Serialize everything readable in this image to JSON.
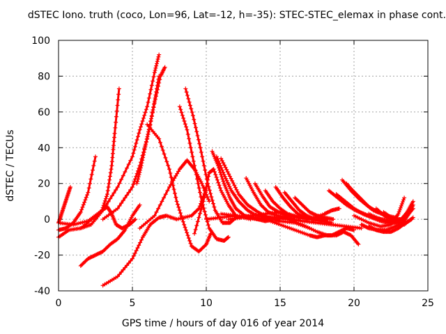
{
  "chart_data": {
    "type": "line",
    "title": "dSTEC Iono. truth (coco, Lon=96, Lat=-12, h=-35): STEC-STEC_elemax in phase cont.",
    "xlabel": "GPS time / hours of day 016 of year 2014",
    "ylabel": "dSTEC  / TECUs",
    "xlim": [
      0,
      25
    ],
    "ylim": [
      -40,
      100
    ],
    "x_ticks": [
      "0",
      "5",
      "10",
      "15",
      "20",
      "25"
    ],
    "y_ticks": [
      "-40",
      "-20",
      "0",
      "20",
      "40",
      "60",
      "80",
      "100"
    ],
    "grid": true,
    "marker": "+",
    "color": "#ff0000",
    "series": [
      {
        "x": [
          0,
          0.2,
          0.4,
          0.6,
          0.8
        ],
        "y": [
          -2,
          3,
          8,
          13,
          18
        ]
      },
      {
        "x": [
          0,
          0.5,
          1,
          1.5,
          2,
          2.5
        ],
        "y": [
          -6,
          -5,
          -2,
          4,
          15,
          35
        ]
      },
      {
        "x": [
          0,
          0.7,
          1.5,
          2.2,
          2.9,
          3.3,
          3.6,
          3.8,
          4.1
        ],
        "y": [
          -10,
          -6,
          -5,
          -3,
          4,
          14,
          30,
          48,
          73
        ]
      },
      {
        "x": [
          1.5,
          2,
          2.5,
          3,
          3.5,
          4,
          4.5,
          5,
          5.5
        ],
        "y": [
          -26,
          -22,
          -20,
          -18,
          -14,
          -11,
          -6,
          2,
          8
        ]
      },
      {
        "x": [
          0,
          1,
          2,
          2.8,
          3.3,
          3.6,
          3.9,
          4.3,
          4.8,
          5.2
        ],
        "y": [
          -2,
          -3,
          -1,
          4,
          7,
          3,
          -3,
          -5,
          -3,
          0
        ]
      },
      {
        "x": [
          3,
          4,
          5,
          5.7,
          6.2,
          6.8,
          7.3,
          8,
          9,
          9.5,
          10
        ],
        "y": [
          -37,
          -32,
          -22,
          -10,
          -3,
          1,
          2,
          0,
          2,
          6,
          17
        ]
      },
      {
        "x": [
          3,
          4,
          5,
          5.5,
          6,
          6.5,
          6.9,
          7.2
        ],
        "y": [
          0,
          6,
          18,
          30,
          45,
          65,
          80,
          85
        ]
      },
      {
        "x": [
          1.5,
          3,
          4,
          5,
          5.5,
          6,
          6.5,
          6.8
        ],
        "y": [
          -5,
          5,
          18,
          35,
          50,
          63,
          82,
          92
        ]
      },
      {
        "x": [
          5.3,
          5.6,
          5.9,
          6.2,
          6.5,
          6.8
        ],
        "y": [
          20,
          30,
          42,
          53,
          66,
          80
        ]
      },
      {
        "x": [
          6,
          6.8,
          7.5,
          8,
          8.5,
          9,
          9.5,
          10,
          10.3
        ],
        "y": [
          53,
          45,
          28,
          10,
          -3,
          -15,
          -18,
          -14,
          -8
        ]
      },
      {
        "x": [
          5.5,
          6.5,
          7.5,
          8.2,
          8.7,
          9.2,
          9.7,
          10.2
        ],
        "y": [
          -5,
          2,
          18,
          28,
          33,
          28,
          20,
          10
        ]
      },
      {
        "x": [
          8.2,
          8.7,
          9.2,
          9.7,
          10.2,
          10.7,
          11.2,
          11.5
        ],
        "y": [
          63,
          50,
          30,
          10,
          -5,
          -11,
          -12,
          -10
        ]
      },
      {
        "x": [
          8.6,
          9.1,
          9.6,
          10.1,
          10.6,
          11.1,
          11.6,
          12
        ],
        "y": [
          73,
          58,
          40,
          20,
          5,
          -2,
          -2,
          1
        ]
      },
      {
        "x": [
          9.2,
          9.8,
          10.2,
          10.5,
          11,
          11.5,
          12,
          13
        ],
        "y": [
          -8,
          10,
          26,
          28,
          16,
          8,
          2,
          0
        ]
      },
      {
        "x": [
          10.4,
          10.8,
          11.2,
          11.6,
          12,
          12.6,
          13.2
        ],
        "y": [
          38,
          30,
          20,
          12,
          6,
          2,
          1
        ]
      },
      {
        "x": [
          10.7,
          11.2,
          11.7,
          12.2,
          12.8,
          13.4,
          14
        ],
        "y": [
          35,
          25,
          16,
          10,
          5,
          2,
          1
        ]
      },
      {
        "x": [
          11,
          11.6,
          12.2,
          12.8,
          13.5,
          14.2,
          15
        ],
        "y": [
          34,
          24,
          14,
          8,
          4,
          1,
          0
        ]
      },
      {
        "x": [
          12.7,
          13.2,
          13.7,
          14.2,
          14.8,
          15.4,
          16
        ],
        "y": [
          23,
          15,
          8,
          4,
          2,
          1,
          0
        ]
      },
      {
        "x": [
          13.3,
          13.8,
          14.3,
          14.9,
          15.5,
          16.2,
          17
        ],
        "y": [
          20,
          13,
          7,
          4,
          2,
          1,
          0
        ]
      },
      {
        "x": [
          14,
          14.5,
          15,
          15.5,
          16.2,
          17,
          17.8,
          18.5
        ],
        "y": [
          16,
          10,
          6,
          3,
          1,
          0,
          -1,
          -2
        ]
      },
      {
        "x": [
          14.7,
          15.2,
          15.7,
          16.2,
          16.8,
          17.5,
          18.2
        ],
        "y": [
          18,
          12,
          7,
          3,
          1,
          0,
          0
        ]
      },
      {
        "x": [
          15.3,
          15.8,
          16.3,
          16.8,
          17.4,
          18
        ],
        "y": [
          15,
          10,
          5,
          2,
          0,
          0
        ]
      },
      {
        "x": [
          16,
          16.5,
          17,
          17.5,
          18,
          18.6
        ],
        "y": [
          12,
          8,
          4,
          2,
          1,
          0
        ]
      },
      {
        "x": [
          10,
          11,
          12,
          13,
          13.5,
          14,
          14.5,
          15,
          16,
          17
        ],
        "y": [
          0,
          1,
          2,
          1,
          0,
          -1,
          0,
          -1,
          -2,
          -5
        ]
      },
      {
        "x": [
          11.5,
          12.5,
          13.5,
          14.5,
          15.5,
          16.5,
          17.5,
          18.2,
          18.8,
          19.3,
          19.8,
          20.3
        ],
        "y": [
          0,
          1,
          0,
          1,
          0,
          -3,
          -7,
          -9,
          -9,
          -7,
          -9,
          -14
        ]
      },
      {
        "x": [
          11,
          12,
          13,
          14,
          15,
          16,
          17,
          17.5,
          18,
          18.5,
          19,
          19.5,
          20
        ],
        "y": [
          3,
          2,
          1,
          0,
          -3,
          -6,
          -9,
          -10,
          -9,
          -9,
          -7,
          -5,
          -6
        ]
      },
      {
        "x": [
          12,
          13,
          14,
          15,
          16,
          17,
          18,
          18.5,
          19
        ],
        "y": [
          1,
          2,
          3,
          4,
          2,
          0,
          3,
          5,
          6
        ]
      },
      {
        "x": [
          13.5,
          14.5,
          15.5,
          16.5,
          17.5,
          18.5,
          19.5,
          20.5
        ],
        "y": [
          2,
          1,
          0,
          -1,
          -2,
          -3,
          -4,
          -5
        ]
      },
      {
        "x": [
          18.3,
          18.9,
          19.5,
          20.1,
          20.7,
          21.3,
          21.9,
          22.5
        ],
        "y": [
          16,
          12,
          8,
          5,
          3,
          1,
          0,
          -1
        ]
      },
      {
        "x": [
          18.8,
          19.4,
          20,
          20.6,
          21.2,
          21.8,
          22.4,
          23
        ],
        "y": [
          14,
          10,
          6,
          3,
          1,
          -1,
          -2,
          -2
        ]
      },
      {
        "x": [
          19.2,
          19.8,
          20.4,
          21,
          21.6,
          22.2,
          22.8
        ],
        "y": [
          22,
          16,
          11,
          7,
          4,
          2,
          1
        ]
      },
      {
        "x": [
          19.5,
          20.1,
          20.7,
          21.3,
          21.9,
          22.5,
          23.1
        ],
        "y": [
          20,
          14,
          9,
          5,
          3,
          1,
          0
        ]
      },
      {
        "x": [
          19.8,
          20.4,
          21,
          21.6,
          22.2,
          22.8,
          23.4
        ],
        "y": [
          17,
          12,
          7,
          4,
          2,
          0,
          0
        ]
      },
      {
        "x": [
          20.5,
          21,
          21.6,
          22.2,
          22.8,
          23.3,
          23.7,
          24
        ],
        "y": [
          -3,
          -5,
          -6,
          -6,
          -4,
          -2,
          3,
          8
        ]
      },
      {
        "x": [
          20,
          21,
          21.8,
          22.5,
          23,
          23.4
        ],
        "y": [
          2,
          -2,
          -4,
          -3,
          3,
          12
        ]
      },
      {
        "x": [
          21,
          21.8,
          22.5,
          23.1,
          23.6,
          24
        ],
        "y": [
          3,
          0,
          -2,
          -1,
          4,
          10
        ]
      },
      {
        "x": [
          21.5,
          22.2,
          22.9,
          23.5,
          24
        ],
        "y": [
          6,
          1,
          -1,
          1,
          6
        ]
      },
      {
        "x": [
          22,
          22.7,
          23.4,
          24
        ],
        "y": [
          4,
          0,
          -3,
          1
        ]
      },
      {
        "x": [
          21,
          21.5,
          22,
          22.5,
          23,
          23.5,
          23.9
        ],
        "y": [
          -4,
          -6,
          -7,
          -7,
          -5,
          -2,
          0
        ]
      }
    ]
  }
}
